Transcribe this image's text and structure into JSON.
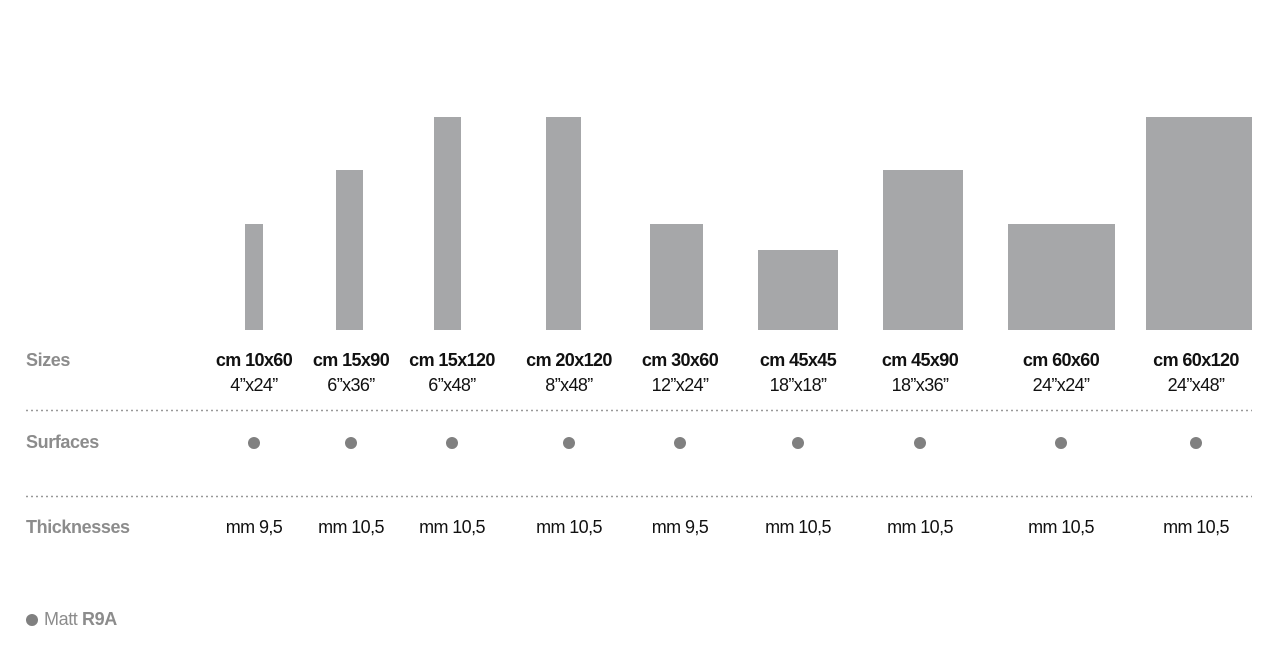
{
  "rows": {
    "sizes": "Sizes",
    "surfaces": "Surfaces",
    "thicknesses": "Thicknesses"
  },
  "columns": [
    {
      "size_cm": "cm 10x60",
      "size_in": "4”x24”",
      "thickness": "mm 9,5"
    },
    {
      "size_cm": "cm 15x90",
      "size_in": "6”x36”",
      "thickness": "mm 10,5"
    },
    {
      "size_cm": "cm 15x120",
      "size_in": "6”x48”",
      "thickness": "mm 10,5"
    },
    {
      "size_cm": "cm 20x120",
      "size_in": "8”x48”",
      "thickness": "mm 10,5"
    },
    {
      "size_cm": "cm 30x60",
      "size_in": "12”x24”",
      "thickness": "mm 9,5"
    },
    {
      "size_cm": "cm 45x45",
      "size_in": "18”x18”",
      "thickness": "mm 10,5"
    },
    {
      "size_cm": "cm 45x90",
      "size_in": "18”x36”",
      "thickness": "mm 10,5"
    },
    {
      "size_cm": "cm 60x60",
      "size_in": "24”x24”",
      "thickness": "mm 10,5"
    },
    {
      "size_cm": "cm 60x120",
      "size_in": "24”x48”",
      "thickness": "mm 10,5"
    }
  ],
  "legend": {
    "label": "Matt",
    "code": "R9A"
  }
}
